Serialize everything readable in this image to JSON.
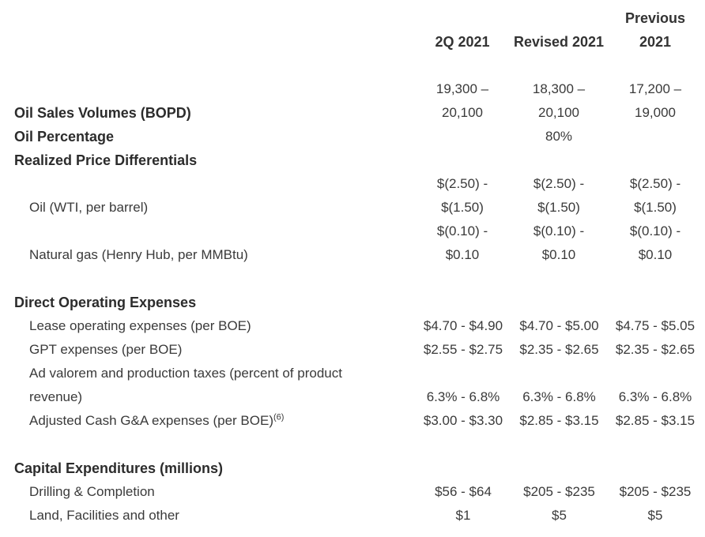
{
  "headers": {
    "col1": "2Q 2021",
    "col2": "Revised 2021",
    "col3_line1": "Previous",
    "col3_line2": "2021"
  },
  "oil_sales": {
    "label": "Oil Sales Volumes (BOPD)",
    "col1_line1": "19,300 –",
    "col1_line2": "20,100",
    "col2_line1": "18,300 –",
    "col2_line2": "20,100",
    "col3_line1": "17,200 –",
    "col3_line2": "19,000"
  },
  "oil_percentage": {
    "label": "Oil Percentage",
    "col2": "80%"
  },
  "realized_price": {
    "label": "Realized Price Differentials"
  },
  "oil_wti": {
    "label": "Oil (WTI, per barrel)",
    "col1_line1": "$(2.50) -",
    "col1_line2": "$(1.50)",
    "col2_line1": "$(2.50) -",
    "col2_line2": "$(1.50)",
    "col3_line1": "$(2.50) -",
    "col3_line2": "$(1.50)"
  },
  "natural_gas": {
    "label": "Natural gas (Henry Hub, per MMBtu)",
    "col1_line1": "$(0.10) -",
    "col1_line2": "$0.10",
    "col2_line1": "$(0.10) -",
    "col2_line2": "$0.10",
    "col3_line1": "$(0.10) -",
    "col3_line2": "$0.10"
  },
  "direct_opex": {
    "label": "Direct Operating Expenses"
  },
  "lease_opex": {
    "label": "Lease operating expenses (per BOE)",
    "col1": "$4.70 - $4.90",
    "col2": "$4.70 - $5.00",
    "col3": "$4.75 - $5.05"
  },
  "gpt": {
    "label": "GPT expenses (per BOE)",
    "col1": "$2.55 - $2.75",
    "col2": "$2.35 - $2.65",
    "col3": "$2.35 - $2.65"
  },
  "ad_valorem": {
    "label_line1": "Ad valorem and production taxes (percent of product",
    "label_line2": "revenue)",
    "col1": "6.3% - 6.8%",
    "col2": "6.3% - 6.8%",
    "col3": "6.3% - 6.8%"
  },
  "cash_ga": {
    "label": "Adjusted Cash G&A expenses (per BOE)",
    "footnote": "(6)",
    "col1": "$3.00 - $3.30",
    "col2": "$2.85 - $3.15",
    "col3": "$2.85 - $3.15"
  },
  "capex": {
    "label": "Capital Expenditures (millions)"
  },
  "drilling": {
    "label": "Drilling & Completion",
    "col1": "$56 - $64",
    "col2": "$205 - $235",
    "col3": "$205 - $235"
  },
  "land": {
    "label": "Land, Facilities and other",
    "col1": "$1",
    "col2": "$5",
    "col3": "$5"
  }
}
